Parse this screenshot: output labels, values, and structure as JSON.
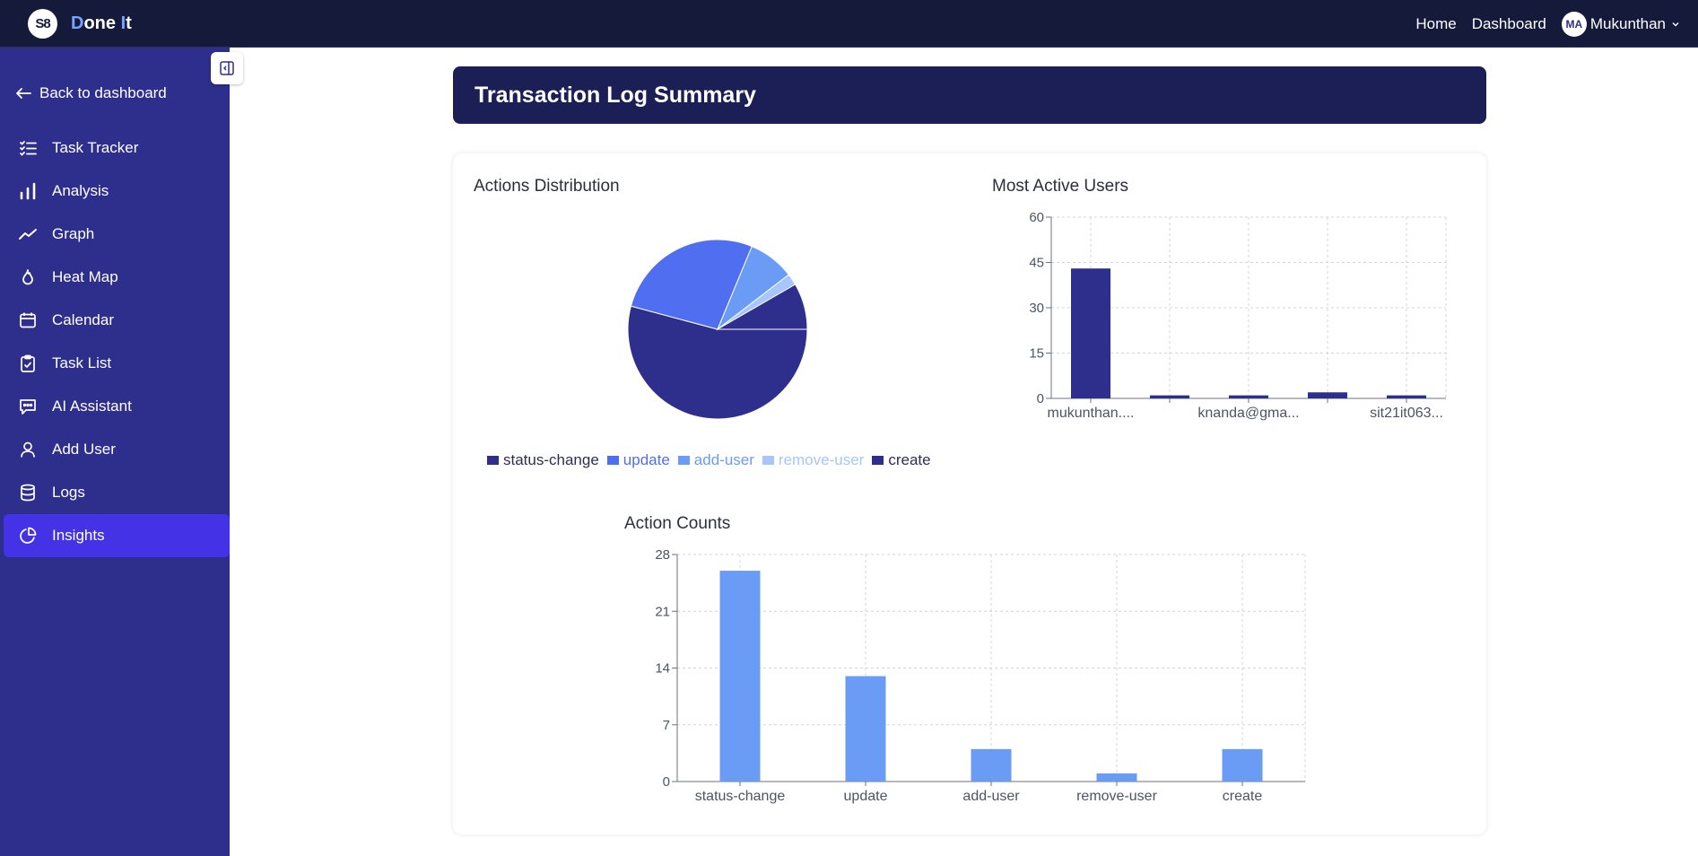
{
  "app": {
    "logo_text": "S8",
    "brand_first": "D",
    "brand_mid": "one ",
    "brand_i": "I",
    "brand_end": "t"
  },
  "topnav": {
    "home": "Home",
    "dashboard": "Dashboard",
    "avatar_initials": "MA",
    "user_name": "Mukunthan"
  },
  "sidebar": {
    "back": "Back to dashboard",
    "items": [
      {
        "label": "Task Tracker",
        "icon": "checklist-icon"
      },
      {
        "label": "Analysis",
        "icon": "bar-chart-icon"
      },
      {
        "label": "Graph",
        "icon": "trend-line-icon"
      },
      {
        "label": "Heat Map",
        "icon": "flame-icon"
      },
      {
        "label": "Calendar",
        "icon": "calendar-icon"
      },
      {
        "label": "Task List",
        "icon": "clipboard-check-icon"
      },
      {
        "label": "AI Assistant",
        "icon": "chat-bubble-icon"
      },
      {
        "label": "Add User",
        "icon": "user-icon"
      },
      {
        "label": "Logs",
        "icon": "database-icon"
      },
      {
        "label": "Insights",
        "icon": "pie-chart-icon",
        "active": true
      }
    ]
  },
  "page": {
    "title": "Transaction Log Summary",
    "pie_title": "Actions Distribution",
    "users_title": "Most Active Users",
    "counts_title": "Action Counts"
  },
  "colors": {
    "status-change": "#2e2e8c",
    "update": "#4f6ef0",
    "add-user": "#6b9cf5",
    "remove-user": "#a8c6fb",
    "create": "#2e2e8c",
    "bar_users": "#2e2e8c",
    "bar_counts": "#6b9cf5"
  },
  "chart_data": [
    {
      "type": "pie",
      "title": "Actions Distribution",
      "categories": [
        "status-change",
        "update",
        "add-user",
        "remove-user",
        "create"
      ],
      "values": [
        26,
        13,
        4,
        1,
        4
      ],
      "legend": "bottom"
    },
    {
      "type": "bar",
      "title": "Most Active Users",
      "categories": [
        "mukunthan....",
        "",
        "knanda@gma...",
        "",
        "sit21it063..."
      ],
      "values": [
        43,
        1,
        1,
        2,
        1
      ],
      "ylim": [
        0,
        60
      ],
      "yticks": [
        0,
        15,
        30,
        45,
        60
      ],
      "grid": true
    },
    {
      "type": "bar",
      "title": "Action Counts",
      "categories": [
        "status-change",
        "update",
        "add-user",
        "remove-user",
        "create"
      ],
      "values": [
        26,
        13,
        4,
        1,
        4
      ],
      "ylim": [
        0,
        28
      ],
      "yticks": [
        0,
        7,
        14,
        21,
        28
      ],
      "grid": true
    }
  ]
}
